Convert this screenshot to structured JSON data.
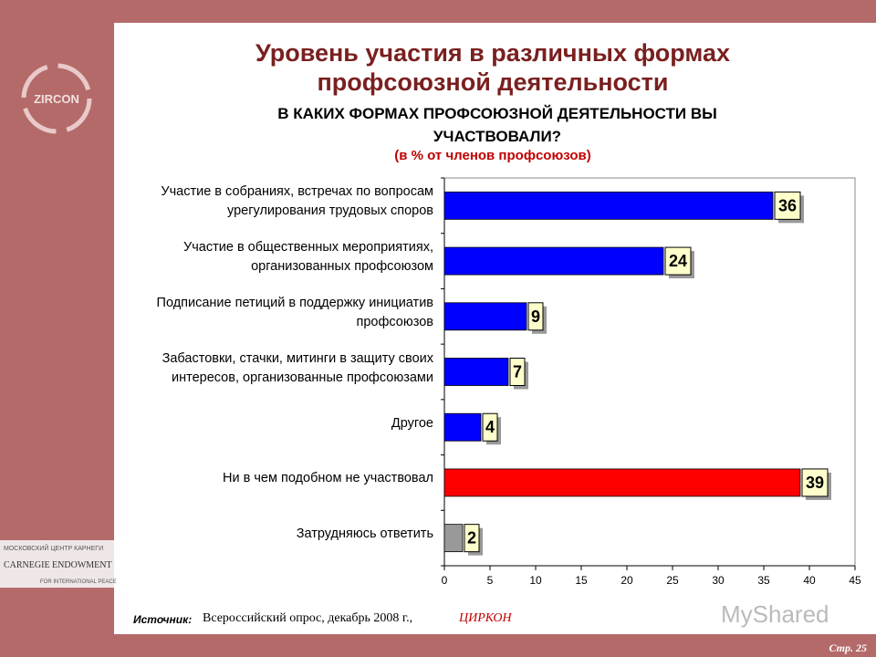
{
  "slide_title": "Уровень участия в различных формах\nпрофсоюзной деятельности",
  "chart_data": {
    "type": "bar",
    "orientation": "horizontal",
    "title": "В КАКИХ ФОРМАХ ПРОФСОЮЗНОЙ ДЕЯТЕЛЬНОСТИ ВЫ\nУЧАСТВОВАЛИ?",
    "subtitle": "(в % от членов профсоюзов)",
    "categories": [
      "Участие в собраниях, встречах по вопросам\nурегулирования трудовых споров",
      "Участие в общественных мероприятиях,\nорганизованных профсоюзом",
      "Подписание петиций в поддержку инициатив\nпрофсоюзов",
      "Забастовки, стачки, митинги в защиту своих\nинтересов, организованные профсоюзами",
      "Другое",
      "Ни в чем подобном не участвовал",
      "Затрудняюсь ответить"
    ],
    "values": [
      36,
      24,
      9,
      7,
      4,
      39,
      2
    ],
    "colors": [
      "#0000ff",
      "#0000ff",
      "#0000ff",
      "#0000ff",
      "#0000ff",
      "#ff0000",
      "#999999"
    ],
    "xlim": [
      0,
      45
    ],
    "xticks": [
      0,
      5,
      10,
      15,
      20,
      25,
      30,
      35,
      40,
      45
    ]
  },
  "source": {
    "label": "Источник:",
    "text": "Всероссийский опрос, декабрь 2008 г.,",
    "org": "ЦИРКОН"
  },
  "page_number": "Стр. 25",
  "branding": {
    "logo": "ZIRCON",
    "carnegie_top": "МОСКОВСКИЙ ЦЕНТР КАРНЕГИ",
    "carnegie_main": "CARNEGIE ENDOWMENT",
    "carnegie_bottom": "FOR INTERNATIONAL PEACE",
    "watermark": "MyShared"
  }
}
